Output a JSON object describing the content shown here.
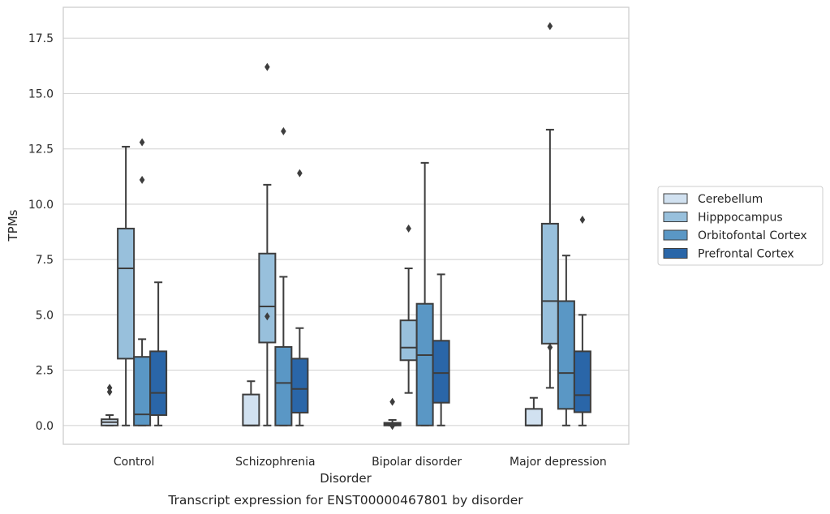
{
  "chart_data": {
    "type": "box",
    "xlabel": "Disorder",
    "ylabel": "TPMs",
    "caption": "Transcript expression for ENST00000467801 by disorder",
    "categories": [
      "Control",
      "Schizophrenia",
      "Bipolar disorder",
      "Major depression"
    ],
    "ylim": [
      -0.85,
      18.9
    ],
    "yticks": [
      0.0,
      2.5,
      5.0,
      7.5,
      10.0,
      12.5,
      15.0,
      17.5
    ],
    "ytick_labels": [
      "0.0",
      "2.5",
      "5.0",
      "7.5",
      "10.0",
      "12.5",
      "15.0",
      "17.5"
    ],
    "grid": "horizontal",
    "legend_position": "right",
    "series": [
      {
        "name": "Cerebellum",
        "color": "#d1e1f0",
        "boxes": [
          {
            "whislo": 0.0,
            "q1": 0.0,
            "median": 0.15,
            "q3": 0.28,
            "whishi": 0.47,
            "fliers": [
              1.52,
              1.7
            ]
          },
          {
            "whislo": 0.0,
            "q1": 0.0,
            "median": 0.0,
            "q3": 1.4,
            "whishi": 2.0,
            "fliers": []
          },
          {
            "whislo": 0.0,
            "q1": 0.0,
            "median": 0.05,
            "q3": 0.12,
            "whishi": 0.25,
            "fliers": [
              1.07,
              -0.02
            ]
          },
          {
            "whislo": 0.0,
            "q1": 0.0,
            "median": 0.0,
            "q3": 0.75,
            "whishi": 1.25,
            "fliers": []
          }
        ]
      },
      {
        "name": "Hipppocampus",
        "color": "#98c0dc",
        "boxes": [
          {
            "whislo": 0.0,
            "q1": 3.02,
            "median": 7.1,
            "q3": 8.9,
            "whishi": 12.6,
            "fliers": []
          },
          {
            "whislo": 0.0,
            "q1": 3.75,
            "median": 5.38,
            "q3": 7.77,
            "whishi": 10.88,
            "fliers": [
              4.93,
              16.2
            ]
          },
          {
            "whislo": 1.47,
            "q1": 2.95,
            "median": 3.52,
            "q3": 4.75,
            "whishi": 7.1,
            "fliers": [
              8.9
            ]
          },
          {
            "whislo": 1.7,
            "q1": 3.7,
            "median": 5.62,
            "q3": 9.12,
            "whishi": 13.37,
            "fliers": [
              3.53,
              18.05
            ]
          }
        ]
      },
      {
        "name": "Orbitofontal Cortex",
        "color": "#5a97c5",
        "boxes": [
          {
            "whislo": 0.0,
            "q1": 0.0,
            "median": 0.5,
            "q3": 3.1,
            "whishi": 3.9,
            "fliers": [
              11.1,
              12.8
            ]
          },
          {
            "whislo": 0.0,
            "q1": 0.0,
            "median": 1.92,
            "q3": 3.55,
            "whishi": 6.72,
            "fliers": [
              13.3
            ]
          },
          {
            "whislo": 0.0,
            "q1": 0.0,
            "median": 3.18,
            "q3": 5.5,
            "whishi": 11.87,
            "fliers": []
          },
          {
            "whislo": 0.0,
            "q1": 0.75,
            "median": 2.37,
            "q3": 5.62,
            "whishi": 7.68,
            "fliers": []
          }
        ]
      },
      {
        "name": "Prefrontal Cortex",
        "color": "#2a66a8",
        "boxes": [
          {
            "whislo": 0.0,
            "q1": 0.47,
            "median": 1.47,
            "q3": 3.35,
            "whishi": 6.47,
            "fliers": []
          },
          {
            "whislo": 0.0,
            "q1": 0.58,
            "median": 1.65,
            "q3": 3.02,
            "whishi": 4.4,
            "fliers": [
              11.4
            ]
          },
          {
            "whislo": 0.0,
            "q1": 1.03,
            "median": 2.37,
            "q3": 3.83,
            "whishi": 6.83,
            "fliers": []
          },
          {
            "whislo": 0.0,
            "q1": 0.6,
            "median": 1.37,
            "q3": 3.35,
            "whishi": 5.0,
            "fliers": [
              9.3
            ]
          }
        ]
      }
    ]
  }
}
